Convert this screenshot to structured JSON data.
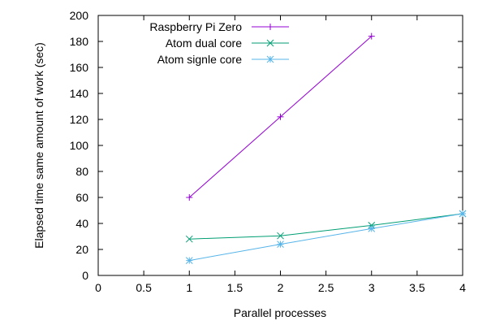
{
  "chart_data": {
    "type": "line",
    "xlabel": "Parallel processes",
    "ylabel": "Elapsed time same amount of work (sec)",
    "xlim": [
      0,
      4
    ],
    "ylim": [
      0,
      200
    ],
    "xticks": [
      0,
      0.5,
      1,
      1.5,
      2,
      2.5,
      3,
      3.5,
      4
    ],
    "yticks": [
      0,
      20,
      40,
      60,
      80,
      100,
      120,
      140,
      160,
      180,
      200
    ],
    "xtick_labels": [
      "0",
      "0.5",
      "1",
      "1.5",
      "2",
      "2.5",
      "3",
      "3.5",
      "4"
    ],
    "ytick_labels": [
      "0",
      "20",
      "40",
      "60",
      "80",
      "100",
      "120",
      "140",
      "160",
      "180",
      "200"
    ],
    "grid": false,
    "legend_position": "top-left",
    "series": [
      {
        "name": "Raspberry Pi Zero",
        "color": "#9400d3",
        "marker": "plus",
        "x": [
          1,
          2,
          3
        ],
        "y": [
          60,
          122,
          184
        ]
      },
      {
        "name": "Atom dual core",
        "color": "#009e73",
        "marker": "cross",
        "x": [
          1,
          2,
          3,
          4
        ],
        "y": [
          28,
          30.5,
          38.5,
          47.5
        ]
      },
      {
        "name": "Atom signle core",
        "color": "#56b4e9",
        "marker": "star",
        "x": [
          1,
          2,
          3,
          4
        ],
        "y": [
          11.5,
          24,
          36,
          47.5
        ]
      }
    ]
  }
}
